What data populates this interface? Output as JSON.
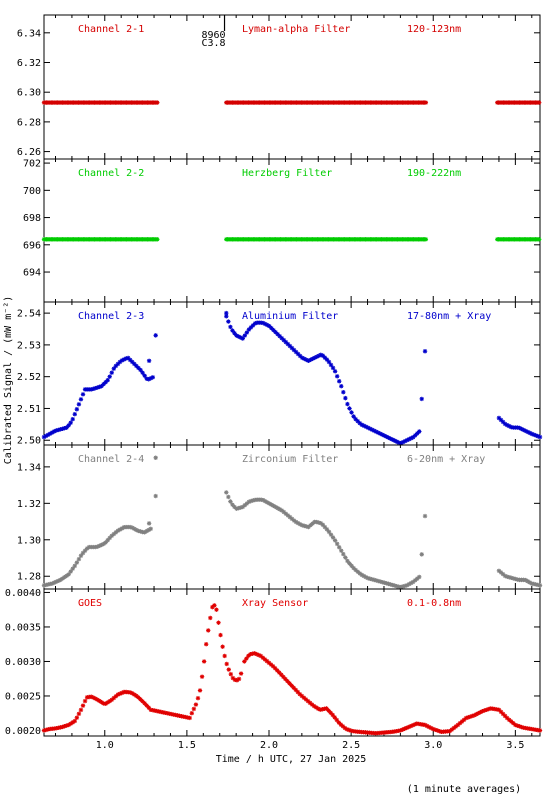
{
  "figure": {
    "ylabel": "Calibrated Signal / (mW m⁻²)",
    "xlabel": "Time / h UTC, 27 Jan 2025",
    "footnote": "(1 minute averages)",
    "event": {
      "x": 1.65,
      "label_top": "8960",
      "label_bottom": "C3.8"
    }
  },
  "chart_data": [
    {
      "type": "scatter",
      "panel": "channel-2-1",
      "texts": [
        "Channel 2-1",
        "Lyman-alpha Filter",
        "120-123nm"
      ],
      "color": "#d40000",
      "xlim": [
        0.63,
        3.65
      ],
      "ylim": [
        6.255,
        6.352
      ],
      "yticks": [
        "6.26",
        "6.28",
        "6.30",
        "6.32",
        "6.34"
      ],
      "segments": [
        {
          "type": "flat",
          "x": [
            0.63,
            1.32
          ],
          "y": 6.293
        },
        {
          "type": "flat",
          "x": [
            1.74,
            2.96
          ],
          "y": 6.293
        },
        {
          "type": "flat",
          "x": [
            3.39,
            3.65
          ],
          "y": 6.293
        }
      ]
    },
    {
      "type": "scatter",
      "panel": "channel-2-2",
      "texts": [
        "Channel 2-2",
        "Herzberg Filter",
        "190-222nm"
      ],
      "color": "#00cc00",
      "xlim": [
        0.63,
        3.65
      ],
      "ylim": [
        691.8,
        702.3
      ],
      "yticks": [
        "694",
        "696",
        "698",
        "700",
        "702"
      ],
      "segments": [
        {
          "type": "flat",
          "x": [
            0.63,
            1.32
          ],
          "y": 696.4
        },
        {
          "type": "flat",
          "x": [
            1.74,
            2.96
          ],
          "y": 696.4
        },
        {
          "type": "flat",
          "x": [
            3.39,
            3.65
          ],
          "y": 696.4
        }
      ]
    },
    {
      "type": "scatter",
      "panel": "channel-2-3",
      "texts": [
        "Channel 2-3",
        "Aluminium Filter",
        "17-80nm + Xray"
      ],
      "color": "#0000cc",
      "xlim": [
        0.63,
        3.65
      ],
      "ylim": [
        2.4985,
        2.5435
      ],
      "yticks": [
        "2.50",
        "2.51",
        "2.52",
        "2.53",
        "2.54"
      ],
      "segments": [
        {
          "type": "curve",
          "x": [
            0.63,
            0.7,
            0.77,
            0.8,
            0.84,
            0.88,
            0.92,
            0.98,
            1.02,
            1.06,
            1.1,
            1.14,
            1.18,
            1.22,
            1.26,
            1.3
          ],
          "y": [
            2.501,
            2.503,
            2.504,
            2.506,
            2.511,
            2.516,
            2.516,
            2.517,
            2.519,
            2.523,
            2.525,
            2.526,
            2.524,
            2.522,
            2.519,
            2.52
          ]
        },
        {
          "type": "points",
          "x": [
            1.27,
            1.31
          ],
          "y": [
            2.525,
            2.533
          ]
        },
        {
          "type": "curve",
          "x": [
            1.74,
            1.77,
            1.8,
            1.84,
            1.88,
            1.92,
            1.96,
            2.0,
            2.04,
            2.08,
            2.12,
            2.16,
            2.2,
            2.24,
            2.28,
            2.32,
            2.36,
            2.4,
            2.44,
            2.48,
            2.52,
            2.56,
            2.6,
            2.64,
            2.68,
            2.72,
            2.76,
            2.8,
            2.84,
            2.88,
            2.92
          ],
          "y": [
            2.539,
            2.535,
            2.533,
            2.532,
            2.535,
            2.537,
            2.537,
            2.536,
            2.534,
            2.532,
            2.53,
            2.528,
            2.526,
            2.525,
            2.526,
            2.527,
            2.525,
            2.522,
            2.517,
            2.511,
            2.507,
            2.505,
            2.504,
            2.503,
            2.502,
            2.501,
            2.5,
            2.499,
            2.5,
            2.501,
            2.503
          ]
        },
        {
          "type": "points",
          "x": [
            1.74,
            2.93,
            2.95
          ],
          "y": [
            2.54,
            2.513,
            2.528
          ]
        },
        {
          "type": "curve",
          "x": [
            3.4,
            3.44,
            3.48,
            3.52,
            3.56,
            3.6,
            3.65
          ],
          "y": [
            2.507,
            2.505,
            2.504,
            2.504,
            2.503,
            2.502,
            2.501
          ]
        }
      ]
    },
    {
      "type": "scatter",
      "panel": "channel-2-4",
      "texts": [
        "Channel 2-4",
        "Zirconium Filter",
        "6-20nm + Xray"
      ],
      "color": "#808080",
      "xlim": [
        0.63,
        3.65
      ],
      "ylim": [
        1.273,
        1.352
      ],
      "yticks": [
        "1.28",
        "1.30",
        "1.32",
        "1.34"
      ],
      "segments": [
        {
          "type": "curve",
          "x": [
            0.63,
            0.68,
            0.73,
            0.78,
            0.82,
            0.86,
            0.9,
            0.95,
            1.0,
            1.04,
            1.08,
            1.12,
            1.16,
            1.2,
            1.24,
            1.28
          ],
          "y": [
            1.275,
            1.276,
            1.278,
            1.281,
            1.286,
            1.292,
            1.296,
            1.296,
            1.298,
            1.302,
            1.305,
            1.307,
            1.307,
            1.305,
            1.304,
            1.306
          ]
        },
        {
          "type": "points",
          "x": [
            1.27,
            1.31,
            1.31
          ],
          "y": [
            1.309,
            1.324,
            1.345
          ]
        },
        {
          "type": "curve",
          "x": [
            1.74,
            1.77,
            1.8,
            1.84,
            1.88,
            1.92,
            1.96,
            2.0,
            2.04,
            2.08,
            2.12,
            2.16,
            2.2,
            2.24,
            2.28,
            2.32,
            2.36,
            2.4,
            2.44,
            2.48,
            2.52,
            2.56,
            2.6,
            2.64,
            2.68,
            2.72,
            2.76,
            2.8,
            2.84,
            2.88,
            2.92
          ],
          "y": [
            1.326,
            1.32,
            1.317,
            1.318,
            1.321,
            1.322,
            1.322,
            1.32,
            1.318,
            1.316,
            1.313,
            1.31,
            1.308,
            1.307,
            1.31,
            1.309,
            1.305,
            1.3,
            1.294,
            1.288,
            1.284,
            1.281,
            1.279,
            1.278,
            1.277,
            1.276,
            1.275,
            1.274,
            1.275,
            1.277,
            1.28
          ]
        },
        {
          "type": "points",
          "x": [
            2.93,
            2.95
          ],
          "y": [
            1.292,
            1.313
          ]
        },
        {
          "type": "curve",
          "x": [
            3.4,
            3.44,
            3.48,
            3.52,
            3.56,
            3.6,
            3.65
          ],
          "y": [
            1.283,
            1.28,
            1.279,
            1.278,
            1.278,
            1.276,
            1.275
          ]
        }
      ]
    },
    {
      "type": "scatter",
      "panel": "goes",
      "texts": [
        "GOES",
        "Xray Sensor",
        "0.1-0.8nm"
      ],
      "color": "#e00000",
      "xlim": [
        0.63,
        3.65
      ],
      "ylim": [
        0.00192,
        0.00405
      ],
      "yticks": [
        "0.0020",
        "0.0025",
        "0.0030",
        "0.0035",
        "0.0040"
      ],
      "xticks": [
        "1.0",
        "1.5",
        "2.0",
        "2.5",
        "3.0",
        "3.5"
      ],
      "segments": [
        {
          "type": "curve",
          "x": [
            0.63,
            0.66,
            0.7,
            0.74,
            0.78,
            0.82,
            0.86,
            0.89,
            0.92,
            0.96,
            1.0,
            1.04,
            1.08,
            1.12,
            1.16,
            1.2,
            1.24,
            1.28,
            1.32,
            1.36,
            1.4,
            1.44,
            1.48,
            1.52
          ],
          "y": [
            0.002,
            0.00202,
            0.00203,
            0.00205,
            0.00208,
            0.00214,
            0.00232,
            0.00248,
            0.00249,
            0.00244,
            0.00238,
            0.00244,
            0.00252,
            0.00256,
            0.00255,
            0.00249,
            0.0024,
            0.0023,
            0.00228,
            0.00226,
            0.00224,
            0.00222,
            0.0022,
            0.00218
          ]
        },
        {
          "type": "curve",
          "x": [
            1.53,
            1.56,
            1.58,
            1.6,
            1.62,
            1.64,
            1.66,
            1.68,
            1.7,
            1.72,
            1.74,
            1.76,
            1.78,
            1.8,
            1.82,
            1.84
          ],
          "y": [
            0.00225,
            0.0024,
            0.00258,
            0.0029,
            0.0033,
            0.0036,
            0.00385,
            0.00375,
            0.00345,
            0.00318,
            0.00298,
            0.00285,
            0.00276,
            0.00272,
            0.00275,
            0.0029
          ]
        },
        {
          "type": "curve",
          "x": [
            1.85,
            1.88,
            1.91,
            1.95,
            1.99,
            2.03,
            2.07,
            2.11,
            2.15,
            2.19,
            2.23,
            2.27,
            2.31,
            2.35,
            2.39,
            2.43,
            2.47,
            2.51,
            2.55,
            2.6,
            2.65,
            2.7,
            2.75,
            2.8,
            2.85,
            2.9,
            2.95,
            3.0,
            3.05,
            3.1,
            3.15,
            3.2,
            3.25,
            3.3,
            3.35,
            3.4,
            3.45,
            3.5,
            3.55,
            3.6,
            3.65
          ],
          "y": [
            0.003,
            0.0031,
            0.00312,
            0.00308,
            0.003,
            0.00292,
            0.00282,
            0.00272,
            0.00262,
            0.00252,
            0.00244,
            0.00236,
            0.0023,
            0.00232,
            0.00222,
            0.0021,
            0.00202,
            0.00199,
            0.00198,
            0.00197,
            0.00196,
            0.00197,
            0.00198,
            0.002,
            0.00205,
            0.0021,
            0.00208,
            0.00202,
            0.00198,
            0.00199,
            0.00208,
            0.00218,
            0.00222,
            0.00228,
            0.00232,
            0.0023,
            0.00218,
            0.00208,
            0.00204,
            0.00202,
            0.002
          ]
        }
      ]
    }
  ]
}
